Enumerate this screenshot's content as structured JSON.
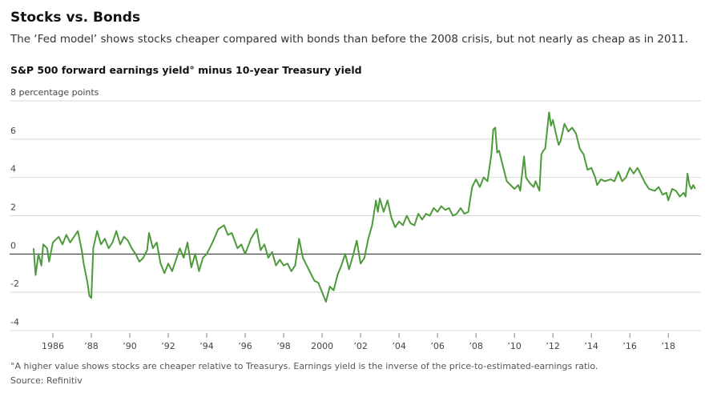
{
  "chart_data": {
    "type": "line",
    "title": "Stocks vs. Bonds",
    "subtitle": "The ‘Fed model’ shows stocks cheaper compared with bonds than before the 2008 crisis, but not nearly as cheap as in 2011.",
    "chart_title": "S&P 500 forward earnings yield° minus 10-year Treasury yield",
    "footnote": "°A higher value shows stocks are cheaper relative to Treasurys. Earnings yield is the inverse of the price-to-estimated-earnings ratio.",
    "source": "Source: Refinitiv",
    "xlim": [
      1985,
      2019.7
    ],
    "ylim": [
      -4,
      8
    ],
    "yticks": [
      {
        "value": 8,
        "label": "8 percentage points"
      },
      6,
      4,
      2,
      0,
      -2,
      -4
    ],
    "xticks": [
      1986,
      {
        "value": 1988,
        "label": "’88"
      },
      {
        "value": 1990,
        "label": "’90"
      },
      {
        "value": 1992,
        "label": "’92"
      },
      {
        "value": 1994,
        "label": "’94"
      },
      {
        "value": 1996,
        "label": "’96"
      },
      {
        "value": 1998,
        "label": "’98"
      },
      2000,
      {
        "value": 2002,
        "label": "’02"
      },
      {
        "value": 2004,
        "label": "’04"
      },
      {
        "value": 2006,
        "label": "’06"
      },
      {
        "value": 2008,
        "label": "’08"
      },
      {
        "value": 2010,
        "label": "’10"
      },
      {
        "value": 2012,
        "label": "’12"
      },
      {
        "value": 2014,
        "label": "’14"
      },
      {
        "value": 2016,
        "label": "’16"
      },
      {
        "value": 2018,
        "label": "’18"
      }
    ],
    "grid": true,
    "color": "#4c9a3a",
    "x": [
      1985.0,
      1985.1,
      1985.25,
      1985.4,
      1985.5,
      1985.7,
      1985.8,
      1986.0,
      1986.3,
      1986.5,
      1986.7,
      1986.9,
      1987.1,
      1987.3,
      1987.5,
      1987.6,
      1987.8,
      1987.9,
      1988.0,
      1988.1,
      1988.3,
      1988.5,
      1988.7,
      1988.9,
      1989.1,
      1989.3,
      1989.5,
      1989.7,
      1989.9,
      1990.1,
      1990.3,
      1990.5,
      1990.7,
      1990.9,
      1991.0,
      1991.2,
      1991.4,
      1991.6,
      1991.8,
      1992.0,
      1992.2,
      1992.4,
      1992.6,
      1992.8,
      1993.0,
      1993.2,
      1993.4,
      1993.6,
      1993.8,
      1994.0,
      1994.3,
      1994.6,
      1994.9,
      1995.1,
      1995.3,
      1995.6,
      1995.8,
      1996.0,
      1996.3,
      1996.6,
      1996.8,
      1997.0,
      1997.2,
      1997.4,
      1997.6,
      1997.8,
      1998.0,
      1998.2,
      1998.4,
      1998.6,
      1998.8,
      1999.0,
      1999.2,
      1999.4,
      1999.6,
      1999.8,
      2000.0,
      2000.2,
      2000.4,
      2000.6,
      2000.8,
      2001.0,
      2001.2,
      2001.4,
      2001.6,
      2001.8,
      2002.0,
      2002.2,
      2002.4,
      2002.6,
      2002.8,
      2002.9,
      2003.0,
      2003.2,
      2003.4,
      2003.6,
      2003.8,
      2004.0,
      2004.2,
      2004.4,
      2004.6,
      2004.8,
      2005.0,
      2005.2,
      2005.4,
      2005.6,
      2005.8,
      2006.0,
      2006.2,
      2006.4,
      2006.6,
      2006.8,
      2007.0,
      2007.2,
      2007.4,
      2007.6,
      2007.8,
      2008.0,
      2008.2,
      2008.4,
      2008.6,
      2008.8,
      2008.9,
      2009.0,
      2009.1,
      2009.2,
      2009.4,
      2009.6,
      2009.8,
      2010.0,
      2010.2,
      2010.3,
      2010.5,
      2010.6,
      2010.8,
      2011.0,
      2011.1,
      2011.3,
      2011.4,
      2011.5,
      2011.6,
      2011.8,
      2011.9,
      2012.0,
      2012.2,
      2012.3,
      2012.4,
      2012.6,
      2012.8,
      2013.0,
      2013.2,
      2013.4,
      2013.6,
      2013.8,
      2014.0,
      2014.2,
      2014.3,
      2014.5,
      2014.7,
      2015.0,
      2015.2,
      2015.4,
      2015.6,
      2015.8,
      2016.0,
      2016.2,
      2016.4,
      2016.6,
      2016.8,
      2017.0,
      2017.3,
      2017.5,
      2017.7,
      2017.9,
      2018.0,
      2018.2,
      2018.4,
      2018.6,
      2018.8,
      2018.9,
      2019.0,
      2019.1,
      2019.2,
      2019.3,
      2019.4
    ],
    "values": [
      0.3,
      -1.1,
      0.0,
      -0.6,
      0.5,
      0.3,
      -0.4,
      0.6,
      0.9,
      0.5,
      1.0,
      0.6,
      0.9,
      1.2,
      0.2,
      -0.5,
      -1.5,
      -2.2,
      -2.3,
      0.3,
      1.2,
      0.5,
      0.8,
      0.3,
      0.6,
      1.2,
      0.5,
      0.9,
      0.7,
      0.3,
      0.0,
      -0.4,
      -0.2,
      0.2,
      1.1,
      0.3,
      0.6,
      -0.5,
      -1.0,
      -0.5,
      -0.9,
      -0.3,
      0.3,
      -0.2,
      0.6,
      -0.7,
      0.0,
      -0.9,
      -0.2,
      0.0,
      0.6,
      1.3,
      1.5,
      1.0,
      1.1,
      0.3,
      0.5,
      0.0,
      0.8,
      1.3,
      0.2,
      0.5,
      -0.2,
      0.1,
      -0.6,
      -0.3,
      -0.6,
      -0.5,
      -0.9,
      -0.6,
      0.8,
      -0.2,
      -0.6,
      -1.0,
      -1.4,
      -1.5,
      -2.0,
      -2.5,
      -1.7,
      -1.9,
      -1.1,
      -0.6,
      0.0,
      -0.8,
      -0.1,
      0.7,
      -0.5,
      -0.2,
      0.8,
      1.5,
      2.8,
      2.2,
      2.9,
      2.2,
      2.8,
      1.9,
      1.4,
      1.7,
      1.5,
      2.0,
      1.6,
      1.5,
      2.1,
      1.8,
      2.1,
      2.0,
      2.4,
      2.2,
      2.5,
      2.3,
      2.4,
      2.0,
      2.1,
      2.4,
      2.1,
      2.2,
      3.5,
      3.9,
      3.5,
      4.0,
      3.8,
      5.2,
      6.5,
      6.6,
      5.3,
      5.4,
      4.6,
      3.8,
      3.6,
      3.4,
      3.6,
      3.3,
      5.1,
      4.0,
      3.7,
      3.5,
      3.8,
      3.3,
      5.2,
      5.4,
      5.5,
      7.4,
      6.7,
      7.0,
      6.1,
      5.7,
      5.9,
      6.8,
      6.4,
      6.6,
      6.3,
      5.5,
      5.2,
      4.4,
      4.5,
      4.0,
      3.6,
      3.9,
      3.8,
      3.9,
      3.8,
      4.3,
      3.8,
      4.0,
      4.5,
      4.2,
      4.5,
      4.1,
      3.7,
      3.4,
      3.3,
      3.5,
      3.1,
      3.2,
      2.8,
      3.4,
      3.3,
      3.0,
      3.2,
      3.0,
      4.2,
      3.6,
      3.4,
      3.6,
      3.4
    ]
  }
}
